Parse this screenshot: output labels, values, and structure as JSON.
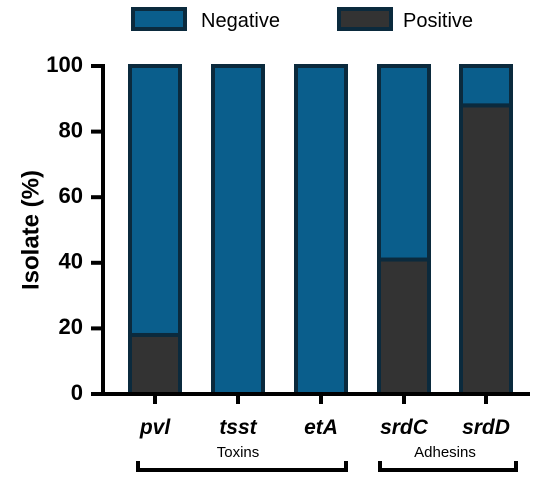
{
  "chart_data": {
    "type": "bar",
    "stacked": true,
    "categories": [
      "pvl",
      "tsst",
      "etA",
      "srdC",
      "srdD"
    ],
    "series": [
      {
        "name": "Positive",
        "values": [
          18,
          0,
          0,
          41,
          88
        ],
        "color": "#333333"
      },
      {
        "name": "Negative",
        "values": [
          82,
          100,
          100,
          59,
          12
        ],
        "color": "#0a5e8c"
      }
    ],
    "ylabel": "Isolate  (%)",
    "ylim": [
      0,
      100
    ],
    "yticks": [
      0,
      20,
      40,
      60,
      80,
      100
    ],
    "groups": [
      {
        "label": "Toxins",
        "categories": [
          "pvl",
          "tsst",
          "etA"
        ]
      },
      {
        "label": "Adhesins",
        "categories": [
          "srdC",
          "srdD"
        ]
      }
    ],
    "legend": {
      "position": "top",
      "order": [
        "Negative",
        "Positive"
      ]
    },
    "bar_edge_color": "#0b2a3d",
    "grid": false
  }
}
